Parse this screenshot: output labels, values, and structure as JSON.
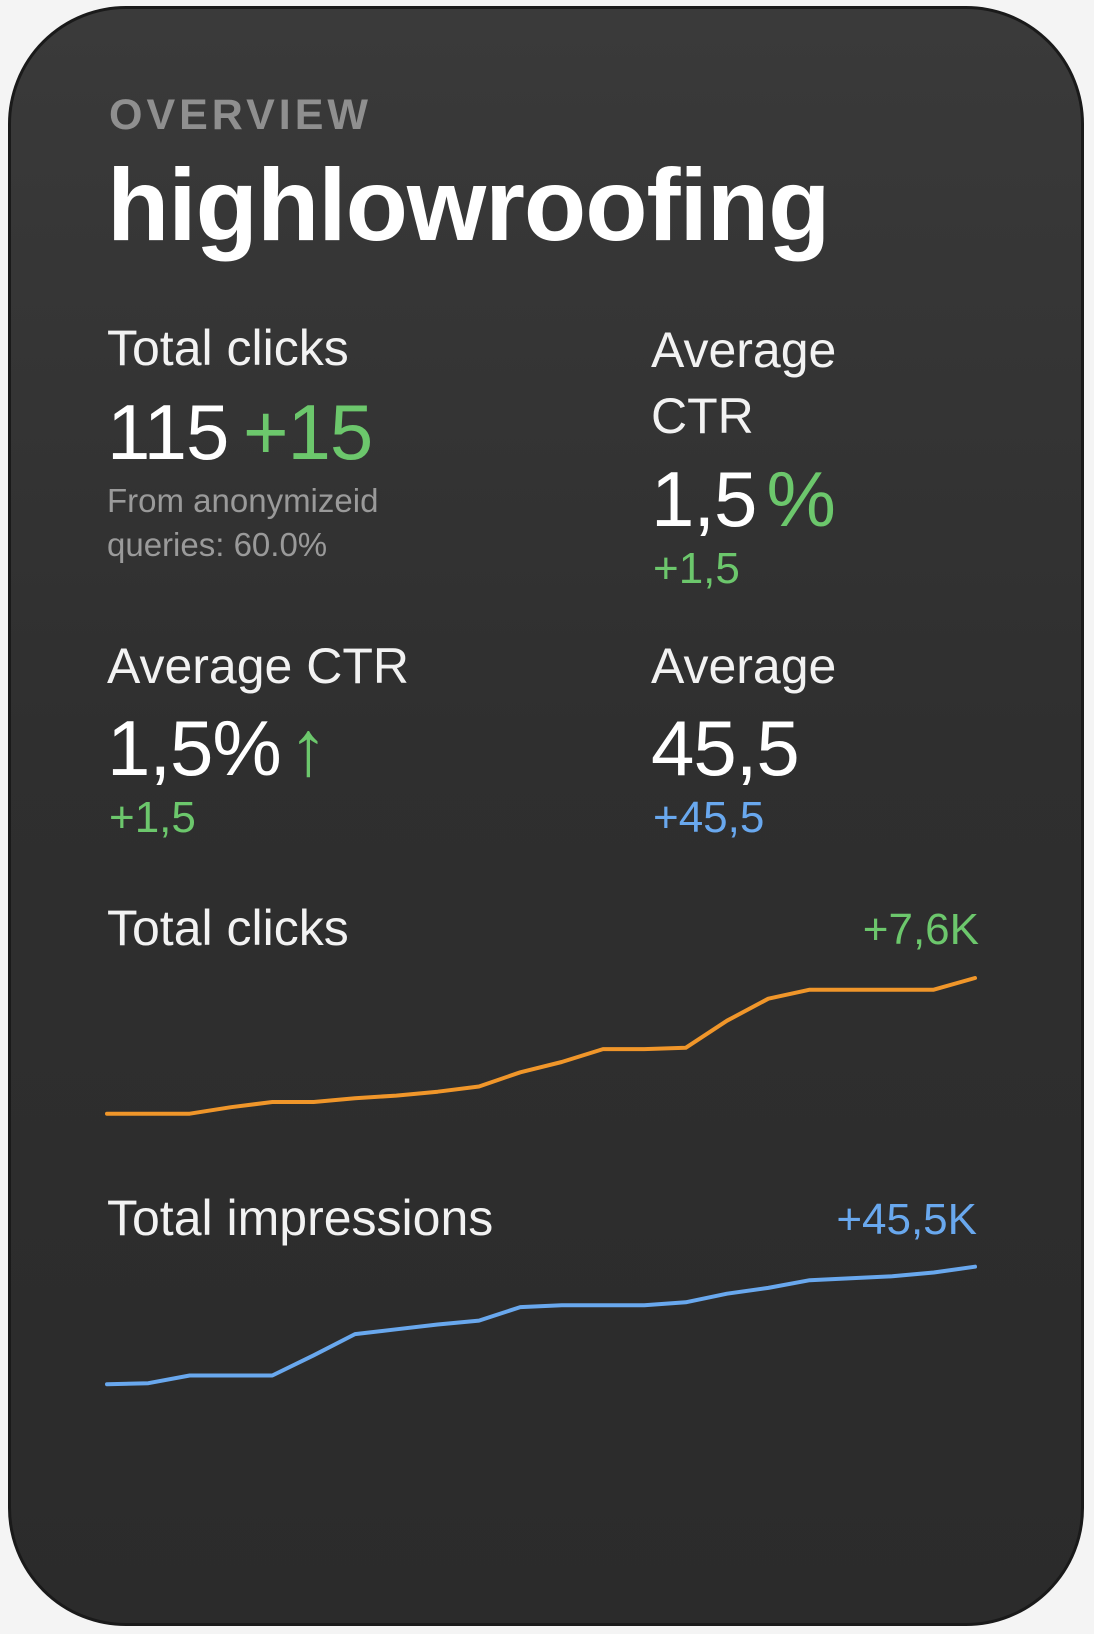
{
  "header": {
    "eyebrow": "OVERVIEW",
    "title": "highlowroofing"
  },
  "metrics": {
    "total_clicks": {
      "label": "Total clicks",
      "value": "115",
      "delta": "+15",
      "note": "From anonymizeid queries: 60.0%"
    },
    "avg_ctr_top": {
      "label": "Average CTR",
      "value": "1,5",
      "unit": "%",
      "delta": "+1,5"
    },
    "avg_ctr": {
      "label": "Average CTR",
      "value": "1,5%",
      "arrow": "↑",
      "delta": "+1,5"
    },
    "average": {
      "label": "Average",
      "value": "45,5",
      "delta": "+45,5"
    }
  },
  "colors": {
    "positive": "#6cc76c",
    "blue": "#69a8ee",
    "orange": "#f0962a"
  },
  "chart_data": [
    {
      "type": "line",
      "title": "Total clicks",
      "annotation": "+7,6K",
      "color": "#f0962a",
      "x": [
        0,
        1,
        2,
        3,
        4,
        5,
        6,
        7,
        8,
        9,
        10,
        11,
        12,
        13,
        14,
        15,
        16,
        17,
        18,
        19,
        20,
        21
      ],
      "values": [
        8,
        8,
        8,
        13,
        17,
        17,
        20,
        22,
        25,
        29,
        40,
        48,
        58,
        58,
        59,
        80,
        97,
        104,
        104,
        104,
        104,
        113
      ],
      "ylim": [
        0,
        120
      ],
      "grid": false
    },
    {
      "type": "line",
      "title": "Total impressions",
      "annotation": "+45,5K",
      "color": "#69a8ee",
      "x": [
        0,
        1,
        2,
        3,
        4,
        5,
        6,
        7,
        8,
        9,
        10,
        11,
        12,
        13,
        14,
        15,
        16,
        17,
        18,
        19,
        20,
        21
      ],
      "values": [
        5,
        6,
        14,
        14,
        14,
        35,
        57,
        62,
        67,
        71,
        85,
        87,
        87,
        87,
        90,
        99,
        105,
        113,
        115,
        117,
        121,
        127
      ],
      "ylim": [
        0,
        135
      ],
      "grid": false
    }
  ]
}
